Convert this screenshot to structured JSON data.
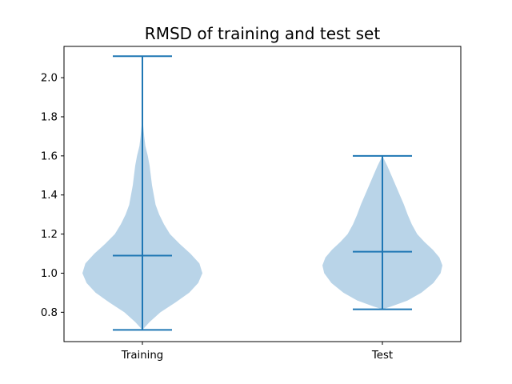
{
  "chart_data": {
    "type": "violin",
    "title": "RMSD of training and test set",
    "xlabel": "",
    "ylabel": "",
    "ylim": [
      0.65,
      2.16
    ],
    "y_ticks": [
      0.8,
      1.0,
      1.2,
      1.4,
      1.6,
      1.8,
      2.0
    ],
    "y_tick_labels": [
      "0.8",
      "1.0",
      "1.2",
      "1.4",
      "1.6",
      "1.8",
      "2.0"
    ],
    "categories": [
      "Training",
      "Test"
    ],
    "grid": false,
    "colors": {
      "body": "#b9d4e8",
      "lines": "#1f77b4"
    },
    "series": [
      {
        "category": "Training",
        "min": 0.71,
        "max": 2.11,
        "median": 1.09,
        "density": [
          [
            0.71,
            0.0
          ],
          [
            0.75,
            0.12
          ],
          [
            0.8,
            0.3
          ],
          [
            0.85,
            0.55
          ],
          [
            0.9,
            0.78
          ],
          [
            0.95,
            0.93
          ],
          [
            1.0,
            1.0
          ],
          [
            1.05,
            0.95
          ],
          [
            1.1,
            0.8
          ],
          [
            1.15,
            0.62
          ],
          [
            1.2,
            0.46
          ],
          [
            1.25,
            0.36
          ],
          [
            1.3,
            0.28
          ],
          [
            1.35,
            0.22
          ],
          [
            1.4,
            0.19
          ],
          [
            1.45,
            0.16
          ],
          [
            1.5,
            0.14
          ],
          [
            1.55,
            0.12
          ],
          [
            1.6,
            0.09
          ],
          [
            1.65,
            0.05
          ],
          [
            1.7,
            0.03
          ],
          [
            1.75,
            0.015
          ],
          [
            1.8,
            0.005
          ],
          [
            1.85,
            0.0
          ]
        ]
      },
      {
        "category": "Test",
        "min": 0.815,
        "max": 1.6,
        "median": 1.11,
        "density": [
          [
            0.815,
            0.0
          ],
          [
            0.83,
            0.15
          ],
          [
            0.86,
            0.42
          ],
          [
            0.9,
            0.65
          ],
          [
            0.95,
            0.85
          ],
          [
            1.0,
            0.97
          ],
          [
            1.04,
            1.0
          ],
          [
            1.08,
            0.95
          ],
          [
            1.12,
            0.84
          ],
          [
            1.16,
            0.7
          ],
          [
            1.2,
            0.58
          ],
          [
            1.25,
            0.49
          ],
          [
            1.3,
            0.42
          ],
          [
            1.35,
            0.36
          ],
          [
            1.4,
            0.29
          ],
          [
            1.45,
            0.22
          ],
          [
            1.5,
            0.15
          ],
          [
            1.55,
            0.08
          ],
          [
            1.6,
            0.0
          ]
        ]
      }
    ]
  }
}
